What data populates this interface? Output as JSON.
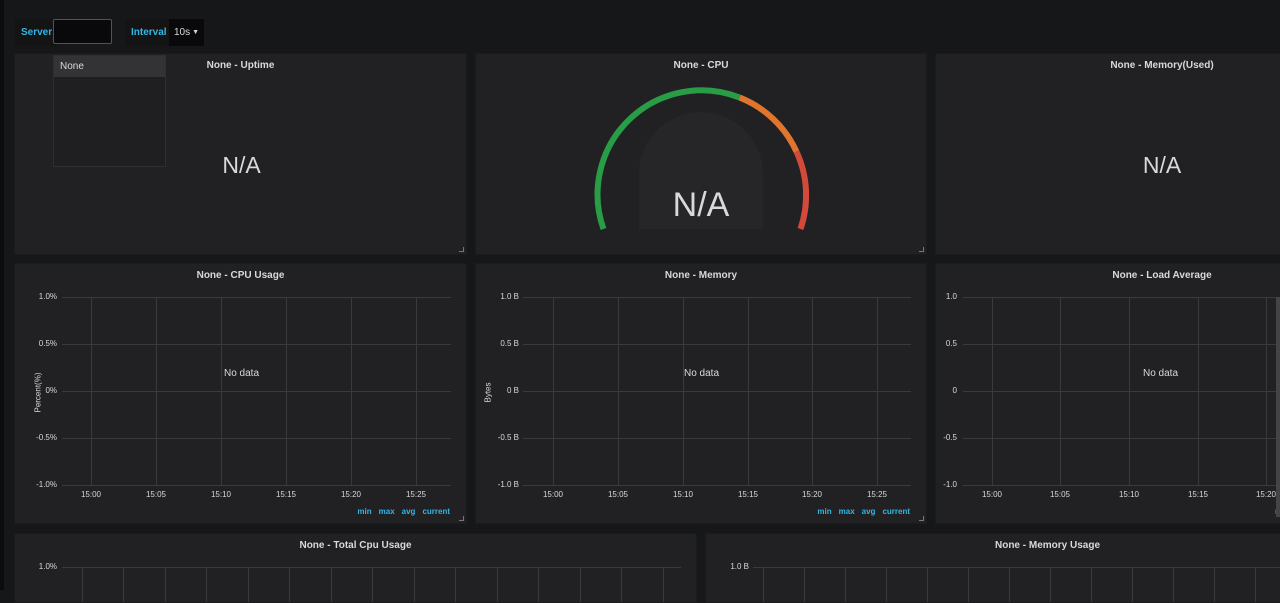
{
  "variables": {
    "server_label": "Server",
    "server_value": "",
    "interval_label": "Interval",
    "interval_value": "10s",
    "dropdown_options": [
      "None"
    ]
  },
  "stat_panels": {
    "uptime": {
      "title": "None - Uptime",
      "value": "N/A"
    },
    "cpu": {
      "title": "None - CPU",
      "value": "N/A"
    },
    "memory_used": {
      "title": "None - Memory(Used)",
      "value": "N/A"
    }
  },
  "graph_panels": {
    "cpu_usage": {
      "title": "None - CPU Usage",
      "ylabel": "Percent(%)",
      "nodata": "No data"
    },
    "memory": {
      "title": "None - Memory",
      "ylabel": "Bytes",
      "nodata": "No data"
    },
    "load_average": {
      "title": "None - Load Average",
      "nodata": "No data"
    },
    "total_cpu_usage": {
      "title": "None - Total Cpu Usage"
    },
    "memory_usage": {
      "title": "None - Memory Usage"
    }
  },
  "legend": {
    "min": "min",
    "max": "max",
    "avg": "avg",
    "current": "current"
  },
  "colors": {
    "accent": "#33b5e5",
    "gauge_green": "#299c46",
    "gauge_orange": "#e0752d",
    "gauge_red": "#d44a3a"
  },
  "chart_data": [
    {
      "type": "line",
      "title": "None - CPU Usage",
      "ylabel": "Percent(%)",
      "yticks": [
        "1.0%",
        "0.5%",
        "0%",
        "-0.5%",
        "-1.0%"
      ],
      "xticks": [
        "15:00",
        "15:05",
        "15:10",
        "15:15",
        "15:20",
        "15:25"
      ],
      "ylim": [
        -1.0,
        1.0
      ],
      "series": [],
      "annotation": "No data"
    },
    {
      "type": "line",
      "title": "None - Memory",
      "ylabel": "Bytes",
      "yticks": [
        "1.0 B",
        "0.5 B",
        "0 B",
        "-0.5 B",
        "-1.0 B"
      ],
      "xticks": [
        "15:00",
        "15:05",
        "15:10",
        "15:15",
        "15:20",
        "15:25"
      ],
      "ylim": [
        -1.0,
        1.0
      ],
      "series": [],
      "annotation": "No data"
    },
    {
      "type": "line",
      "title": "None - Load Average",
      "yticks": [
        "1.0",
        "0.5",
        "0",
        "-0.5",
        "-1.0"
      ],
      "xticks": [
        "15:00",
        "15:05",
        "15:10",
        "15:15",
        "15:20"
      ],
      "ylim": [
        -1.0,
        1.0
      ],
      "series": [],
      "annotation": "No data"
    },
    {
      "type": "line",
      "title": "None - Total Cpu Usage",
      "yticks": [
        "1.0%"
      ],
      "series": []
    },
    {
      "type": "line",
      "title": "None - Memory Usage",
      "yticks": [
        "1.0 B"
      ],
      "series": []
    }
  ]
}
